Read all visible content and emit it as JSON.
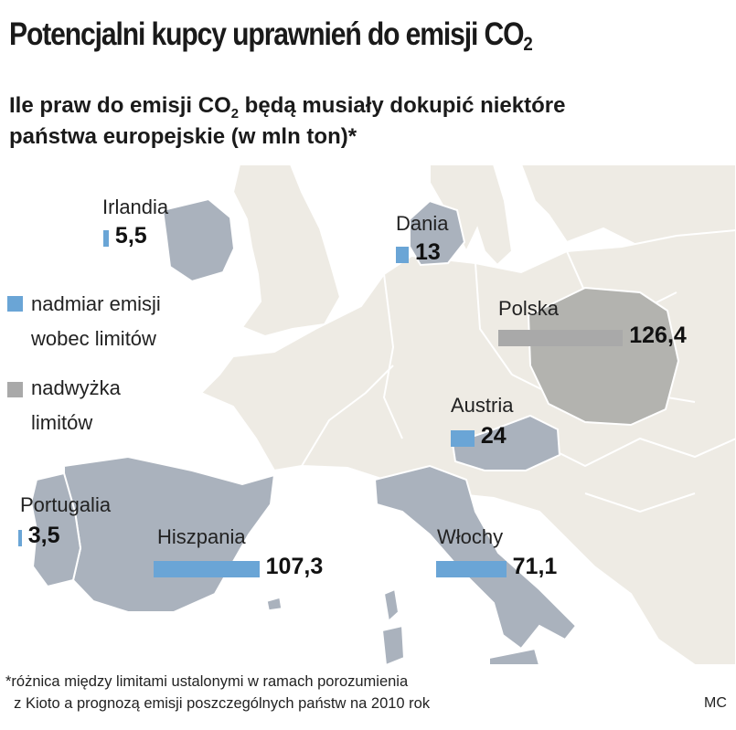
{
  "title": "Potencjalni kupcy uprawnień do emisji CO",
  "title_sub": "2",
  "subtitle": {
    "line1_a": "Ile praw do emisji CO",
    "line1_sub": "2",
    "line1_b": " będą musiały dokupić niektóre",
    "line2": "państwa europejskie (w mln ton)*"
  },
  "legend": {
    "excess_line1": "nadmiar emisji",
    "excess_line2": "wobec limitów",
    "surplus_line1": "nadwyżka",
    "surplus_line2": "limitów"
  },
  "colors": {
    "excess": "#6aa5d6",
    "surplus": "#a9a9a9"
  },
  "chart_data": {
    "type": "bar",
    "categories": [
      "Irlandia",
      "Dania",
      "Polska",
      "Austria",
      "Portugalia",
      "Hiszpania",
      "Włochy"
    ],
    "values": [
      5.5,
      13,
      126.4,
      24,
      3.5,
      107.3,
      71.1
    ],
    "value_labels": [
      "5,5",
      "13",
      "126,4",
      "24",
      "3,5",
      "107,3",
      "71,1"
    ],
    "kind": [
      "excess",
      "excess",
      "surplus",
      "excess",
      "excess",
      "excess",
      "excess"
    ]
  },
  "footnote_line1": "*różnica między limitami ustalonymi w ramach porozumienia",
  "footnote_line2": "z Kioto a prognozą emisji poszczególnych państw na 2010 rok",
  "credit": "MC"
}
